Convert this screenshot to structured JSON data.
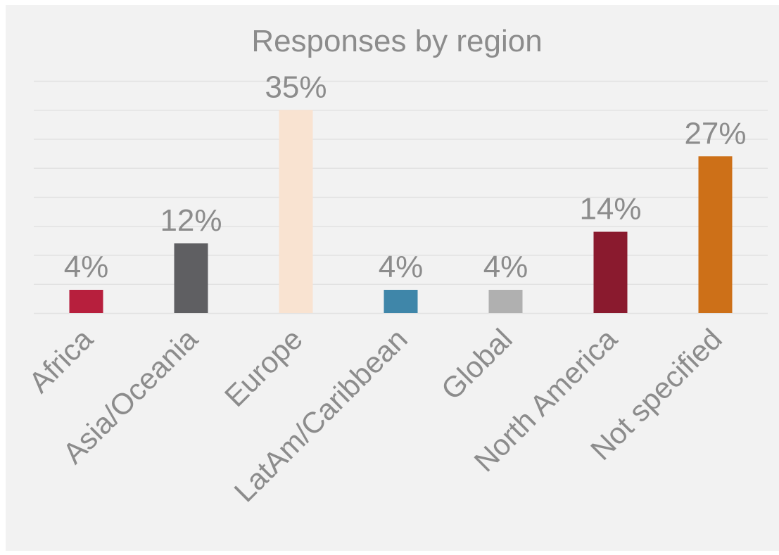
{
  "chart_data": {
    "type": "bar",
    "title": "Responses by region",
    "categories": [
      "Africa",
      "Asia/Oceania",
      "Europe",
      "LatAm/Caribbean",
      "Global",
      "North America",
      "Not specified"
    ],
    "values": [
      4,
      12,
      35,
      4,
      4,
      14,
      27
    ],
    "data_labels": [
      "4%",
      "12%",
      "35%",
      "4%",
      "4%",
      "14%",
      "27%"
    ],
    "colors": [
      "#b71f3d",
      "#5f5f62",
      "#f9e3d1",
      "#3f86a9",
      "#b0b0b0",
      "#8a1a2e",
      "#cd7018"
    ],
    "unit": "%",
    "ylim": [
      0,
      40
    ],
    "gridlines": true,
    "legend": "none",
    "background": "#f2f2f2",
    "text_color": "#8c8c8c"
  }
}
